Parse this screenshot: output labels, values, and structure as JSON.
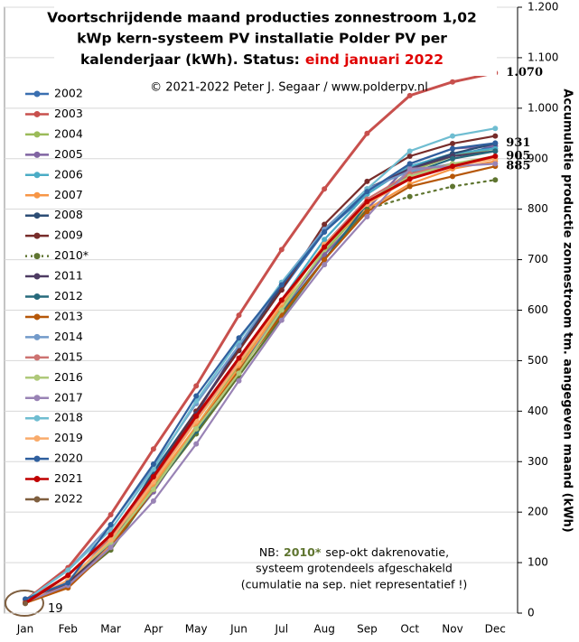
{
  "chart_data": {
    "type": "line",
    "title_lines": [
      "Voortschrijdende maand producties zonnestroom 1,02",
      "kWp kern-systeem PV installatie Polder PV per",
      "kalenderjaar (kWh). Status:"
    ],
    "title_status": "eind januari 2022",
    "subtitle": "© 2021-2022 Peter J. Segaar / www.polderpv.nl",
    "y_label": "Accumulatie productie zonnestroom tm. aangegeven maand (kWh)",
    "note": {
      "lead": "NB:",
      "highlight": "2010*",
      "rest": "sep-okt dakrenovatie,",
      "lines": [
        "systeem grotendeels afgeschakeld",
        "(cumulatie na sep. niet representatief !)"
      ]
    },
    "categories": [
      "Jan",
      "Feb",
      "Mar",
      "Apr",
      "May",
      "Jun",
      "Jul",
      "Aug",
      "Sep",
      "Oct",
      "Nov",
      "Dec"
    ],
    "ylim": [
      0,
      1200
    ],
    "yticks": [
      0,
      100,
      200,
      300,
      400,
      500,
      600,
      700,
      800,
      900,
      {
        "value": 1000,
        "label": "1.000"
      },
      {
        "value": 1100,
        "label": "1.100"
      },
      {
        "value": 1200,
        "label": "1.200"
      }
    ],
    "grid": true,
    "legend": "left",
    "series": [
      {
        "name": "2002",
        "color": "#3a6fb0",
        "values": [
          25,
          60,
          150,
          275,
          400,
          520,
          640,
          755,
          830,
          885,
          905,
          925
        ]
      },
      {
        "name": "2003",
        "color": "#c8504d",
        "values": [
          25,
          90,
          195,
          325,
          450,
          590,
          720,
          840,
          950,
          1025,
          1052,
          1070
        ],
        "end_label": "1.070",
        "end_label_color": "#c00000"
      },
      {
        "name": "2004",
        "color": "#9bbb59",
        "values": [
          22,
          65,
          140,
          250,
          370,
          490,
          605,
          715,
          810,
          875,
          905,
          920
        ]
      },
      {
        "name": "2005",
        "color": "#8064a2",
        "values": [
          20,
          55,
          135,
          240,
          365,
          480,
          600,
          710,
          800,
          890,
          920,
          925
        ]
      },
      {
        "name": "2006",
        "color": "#4bacc6",
        "values": [
          22,
          60,
          140,
          265,
          380,
          500,
          620,
          740,
          830,
          885,
          910,
          920
        ]
      },
      {
        "name": "2007",
        "color": "#f79646",
        "values": [
          20,
          50,
          135,
          255,
          370,
          485,
          610,
          730,
          800,
          850,
          880,
          895
        ]
      },
      {
        "name": "2008",
        "color": "#2c4d75",
        "values": [
          22,
          55,
          145,
          280,
          400,
          525,
          645,
          760,
          840,
          880,
          910,
          930
        ]
      },
      {
        "name": "2009",
        "color": "#772c2a",
        "values": [
          20,
          60,
          140,
          270,
          400,
          520,
          640,
          770,
          855,
          905,
          930,
          945
        ]
      },
      {
        "name": "2010*",
        "color": "#5f7530",
        "values": [
          20,
          55,
          125,
          245,
          355,
          470,
          585,
          700,
          800,
          825,
          845,
          858
        ],
        "dotted_from": "Sep"
      },
      {
        "name": "2011",
        "color": "#4d3b62",
        "values": [
          20,
          55,
          140,
          270,
          395,
          530,
          650,
          755,
          840,
          880,
          905,
          915
        ]
      },
      {
        "name": "2012",
        "color": "#276a7c",
        "values": [
          20,
          55,
          130,
          245,
          360,
          480,
          595,
          700,
          810,
          870,
          900,
          915
        ]
      },
      {
        "name": "2013",
        "color": "#b65708",
        "values": [
          20,
          50,
          130,
          245,
          365,
          480,
          590,
          700,
          795,
          845,
          865,
          885
        ],
        "end_label": "885",
        "end_label_color": "#2040c0"
      },
      {
        "name": "2014",
        "color": "#729aca",
        "values": [
          25,
          85,
          175,
          290,
          415,
          530,
          655,
          760,
          840,
          875,
          890,
          900
        ]
      },
      {
        "name": "2015",
        "color": "#cd7371",
        "values": [
          25,
          75,
          150,
          265,
          385,
          500,
          615,
          730,
          820,
          870,
          890,
          900
        ]
      },
      {
        "name": "2016",
        "color": "#afc97a",
        "values": [
          22,
          65,
          140,
          245,
          365,
          475,
          600,
          720,
          815,
          865,
          890,
          905
        ]
      },
      {
        "name": "2017",
        "color": "#9983b5",
        "values": [
          22,
          55,
          130,
          222,
          335,
          460,
          580,
          690,
          785,
          880,
          885,
          890
        ]
      },
      {
        "name": "2018",
        "color": "#6fbdd1",
        "values": [
          25,
          85,
          165,
          285,
          420,
          540,
          655,
          755,
          840,
          915,
          945,
          960
        ]
      },
      {
        "name": "2019",
        "color": "#f9ab6b",
        "values": [
          22,
          65,
          145,
          260,
          380,
          495,
          615,
          730,
          810,
          860,
          885,
          900
        ]
      },
      {
        "name": "2020",
        "color": "#2f5f9e",
        "values": [
          28,
          60,
          175,
          295,
          430,
          545,
          650,
          755,
          835,
          890,
          920,
          931
        ],
        "end_label": "931",
        "end_label_color": "#5b8fcf"
      },
      {
        "name": "2021",
        "color": "#c00000",
        "values": [
          20,
          75,
          155,
          270,
          390,
          505,
          620,
          725,
          815,
          860,
          885,
          905
        ],
        "end_label": "905",
        "end_label_color": "#c00000"
      },
      {
        "name": "2022",
        "color": "#7f5f3f",
        "values": [
          19,
          null,
          null,
          null,
          null,
          null,
          null,
          null,
          null,
          null,
          null,
          null
        ]
      }
    ]
  }
}
